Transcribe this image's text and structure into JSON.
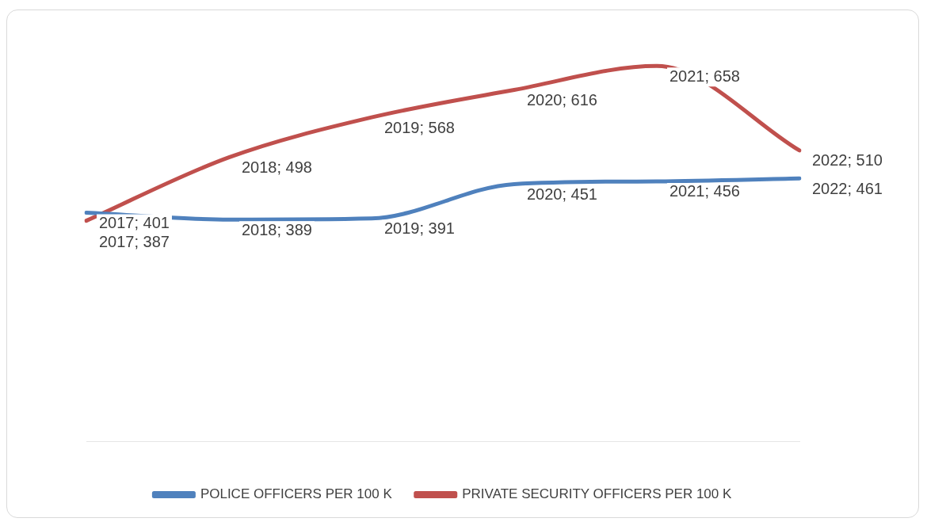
{
  "chart_data": {
    "type": "line",
    "categories": [
      null,
      null,
      null,
      null,
      null,
      null
    ],
    "series": [
      {
        "name": "POLICE OFFICERS PER 100 K",
        "color": "#4f81bd",
        "values": [
          401,
          389,
          391,
          451,
          456,
          461
        ],
        "value_labels": [
          "2017; 401",
          "2018; 389",
          "2019; 391",
          "2020; 451",
          "2021; 456",
          "2022; 461"
        ]
      },
      {
        "name": "PRIVATE SECURITY OFFICERS PER 100 K",
        "color": "#c0504d",
        "values": [
          387,
          498,
          568,
          616,
          658,
          510
        ],
        "value_labels": [
          "2017; 387",
          "2018; 498",
          "2019; 568",
          "2020; 616",
          "2021; 658",
          "2022; 510"
        ]
      }
    ],
    "legend": "bottom",
    "line_style": "solid",
    "marker": "none"
  }
}
